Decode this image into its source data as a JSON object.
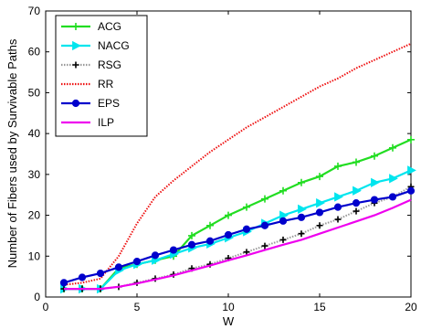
{
  "chart_data": {
    "type": "line",
    "title": "",
    "xlabel": "W",
    "ylabel": "Number of Fibers used by Survivable Paths",
    "xlim": [
      0,
      20
    ],
    "ylim": [
      0,
      70
    ],
    "xticks": [
      0,
      5,
      10,
      15,
      20
    ],
    "yticks": [
      0,
      10,
      20,
      30,
      40,
      50,
      60,
      70
    ],
    "grid": false,
    "legend_position": "top-left",
    "x": [
      1,
      2,
      3,
      4,
      5,
      6,
      7,
      8,
      9,
      10,
      11,
      12,
      13,
      14,
      15,
      16,
      17,
      18,
      19,
      20
    ],
    "series": [
      {
        "name": "ACG",
        "color": "#22dd22",
        "marker": "plus",
        "dash": "solid",
        "values": [
          2,
          2,
          2,
          7,
          8,
          9,
          10,
          15,
          17.5,
          20,
          22,
          24,
          26,
          28,
          29.5,
          32,
          33,
          34.5,
          36.5,
          38.5
        ]
      },
      {
        "name": "NACG",
        "color": "#00e5ee",
        "marker": "triangle-right",
        "dash": "solid",
        "values": [
          2,
          2,
          2,
          6.5,
          8,
          9,
          10.5,
          12,
          13,
          14.5,
          16,
          18,
          20,
          21.5,
          23,
          24.5,
          26,
          28,
          29,
          31
        ]
      },
      {
        "name": "RSG",
        "color": "#999999",
        "marker": "plus-black",
        "dash": "dotted",
        "values": [
          2,
          2,
          2,
          2.5,
          3.5,
          4.5,
          5.5,
          7,
          8,
          9.5,
          11,
          12.5,
          14,
          15.5,
          17.5,
          19,
          21,
          23,
          24.5,
          27
        ]
      },
      {
        "name": "RR",
        "color": "#ee1111",
        "marker": "none",
        "dash": "dotted",
        "values": [
          3,
          3.5,
          4.5,
          10,
          18,
          24.5,
          28.5,
          32,
          35.5,
          38.5,
          41.5,
          44,
          46.5,
          49,
          51.5,
          53.5,
          56,
          58,
          60,
          62
        ]
      },
      {
        "name": "EPS",
        "color": "#0000cc",
        "marker": "circle",
        "dash": "solid",
        "values": [
          3.5,
          4.8,
          5.8,
          7.3,
          8.7,
          10.2,
          11.5,
          12.8,
          13.7,
          15.2,
          16.6,
          17.5,
          18.6,
          19.5,
          20.7,
          22,
          23,
          23.8,
          24.5,
          26
        ]
      },
      {
        "name": "ILP",
        "color": "#ee00ee",
        "marker": "none",
        "dash": "solid",
        "values": [
          2,
          2,
          2,
          2.5,
          3.3,
          4.3,
          5.3,
          6.5,
          7.7,
          9,
          10.2,
          11.5,
          12.8,
          14,
          15.5,
          17,
          18.5,
          20,
          21.8,
          23.8
        ]
      }
    ]
  }
}
